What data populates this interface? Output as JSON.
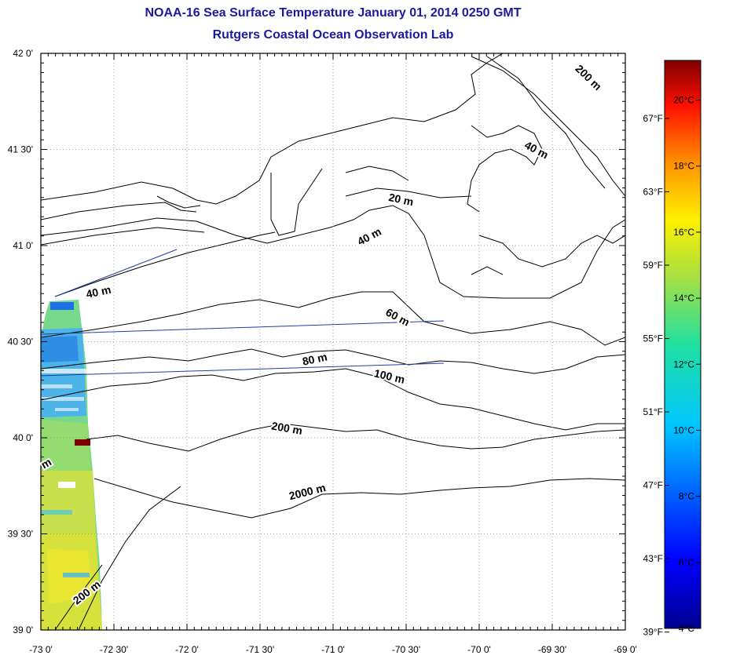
{
  "title": "NOAA-16 Sea Surface Temperature January 01, 2014 0250 GMT",
  "subtitle": "Rutgers Coastal Ocean Observation Lab",
  "colors": {
    "title": "#1a1aa0",
    "track": "#1f3fa0"
  },
  "map": {
    "lon_range": [
      -73.0,
      -69.0
    ],
    "lat_range": [
      39.0,
      42.0
    ],
    "lon_tick_labels": [
      "-73 0'",
      "-72 30'",
      "-72 0'",
      "-71 30'",
      "-71 0'",
      "-70 30'",
      "-70 0'",
      "-69 30'",
      "-69 0'"
    ],
    "lat_tick_labels": [
      "42 0'",
      "41 30'",
      "41 0'",
      "40 30'",
      "40 0'",
      "39 30'",
      "39 0'"
    ],
    "contour_labels": [
      {
        "text": "200 m",
        "lon": -69.27,
        "lat": 41.86,
        "angle": 44
      },
      {
        "text": "40 m",
        "lon": -69.62,
        "lat": 41.48,
        "angle": 28
      },
      {
        "text": "20 m",
        "lon": -70.54,
        "lat": 41.22,
        "angle": 12
      },
      {
        "text": "40 m",
        "lon": -70.74,
        "lat": 41.03,
        "angle": -28
      },
      {
        "text": "40 m",
        "lon": -72.6,
        "lat": 40.74,
        "angle": -12
      },
      {
        "text": "60 m",
        "lon": -70.57,
        "lat": 40.61,
        "angle": 28
      },
      {
        "text": "80 m",
        "lon": -71.12,
        "lat": 40.39,
        "angle": -12
      },
      {
        "text": "100 m",
        "lon": -70.62,
        "lat": 40.3,
        "angle": 13
      },
      {
        "text": "200 m",
        "lon": -71.32,
        "lat": 40.03,
        "angle": 10
      },
      {
        "text": "2000 m",
        "lon": -71.17,
        "lat": 39.7,
        "angle": -14
      },
      {
        "text": "200 m",
        "lon": -72.67,
        "lat": 39.18,
        "angle": -38
      },
      {
        "text": "m",
        "lon": -72.95,
        "lat": 39.85,
        "angle": -30
      }
    ]
  },
  "colorbar": {
    "celsius_labels": [
      "20°C",
      "18°C",
      "16°C",
      "14°C",
      "12°C",
      "10°C",
      "8°C",
      "6°C",
      "4°C"
    ],
    "fahrenheit_labels": [
      "67°F",
      "63°F",
      "59°F",
      "55°F",
      "51°F",
      "47°F",
      "43°F",
      "39°F"
    ],
    "range_c": [
      4,
      21.2
    ]
  }
}
